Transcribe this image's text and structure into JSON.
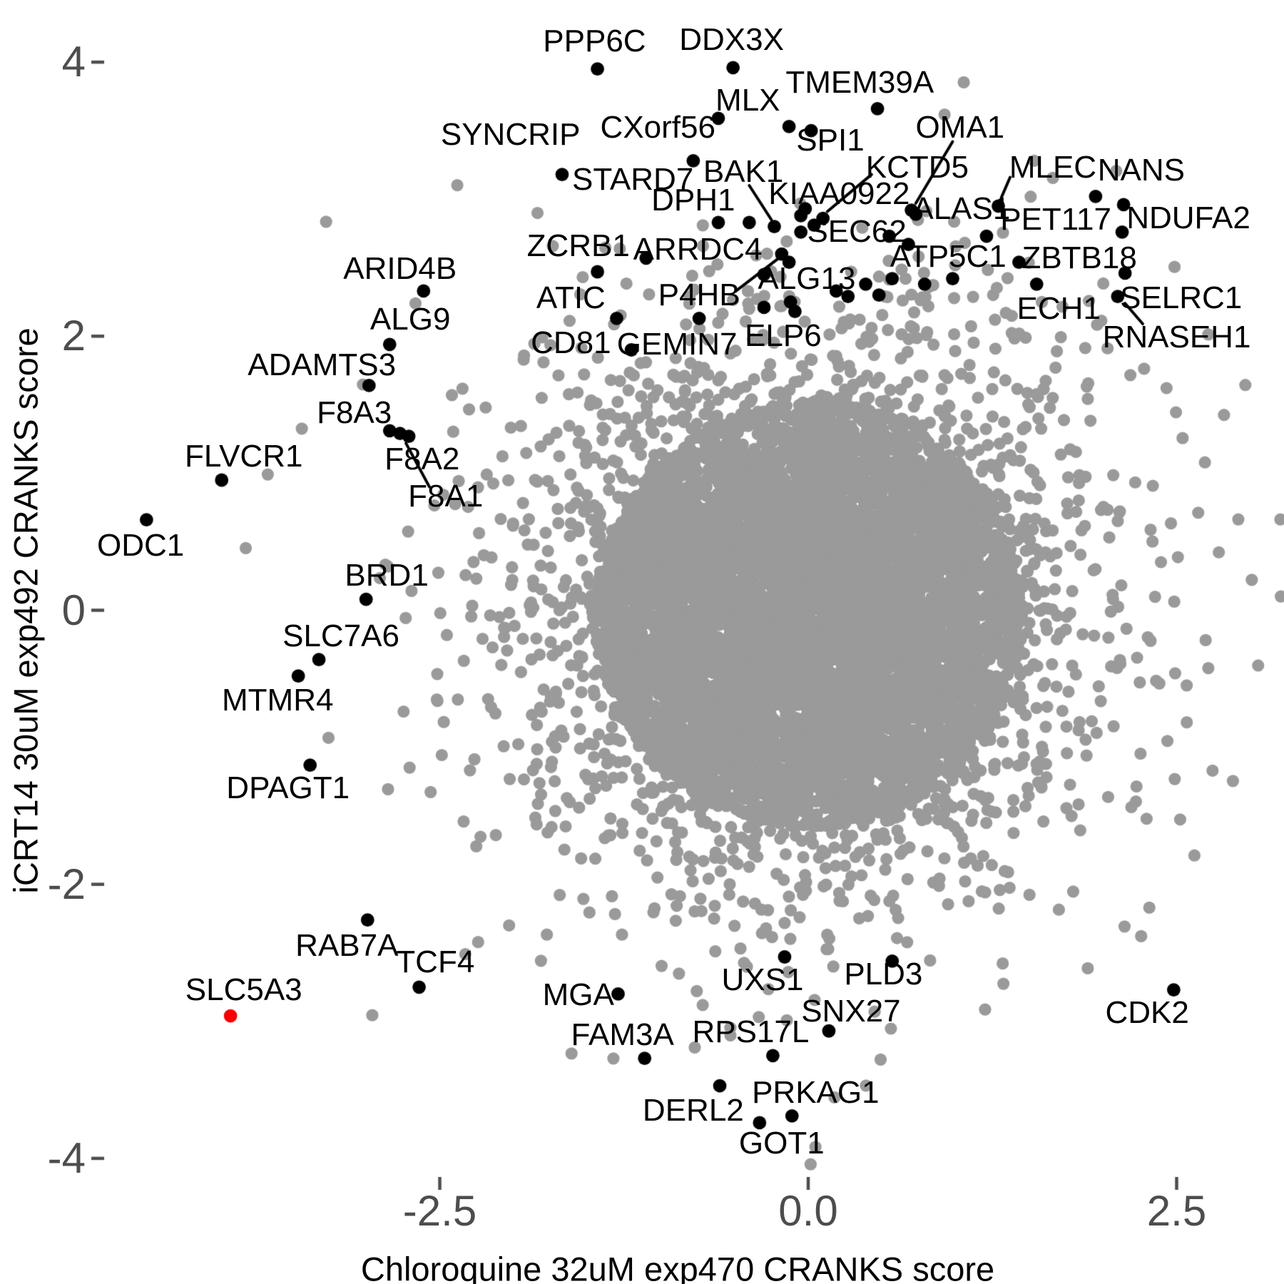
{
  "chart_data": {
    "type": "scatter",
    "title": "",
    "xlabel": "Chloroquine 32uM exp470 CRANKS score",
    "ylabel": "iCRT14 30uM exp492 CRANKS score",
    "xlim": [
      -4.85,
      3.2
    ],
    "ylim": [
      -4.6,
      4.4
    ],
    "grid": false,
    "legend": "none",
    "x_ticks": [
      {
        "value": -2.5,
        "label": "-2.5"
      },
      {
        "value": 0.0,
        "label": "0.0"
      },
      {
        "value": 2.5,
        "label": "2.5"
      }
    ],
    "y_ticks": [
      {
        "value": 4,
        "label": "4"
      },
      {
        "value": 2,
        "label": "2"
      },
      {
        "value": 0,
        "label": "0"
      },
      {
        "value": -2,
        "label": "-2"
      },
      {
        "value": -4,
        "label": "-4"
      }
    ],
    "colors": {
      "cloud": "#9a9a9a",
      "highlight": "#000000",
      "special": "#f80000",
      "tick_text": "#4d4d4d",
      "axis_title": "#000000"
    },
    "background_cloud": {
      "description": "dense cloud of unlabeled genes",
      "seed": 1234,
      "center": [
        0.01,
        -0.03
      ],
      "groups": [
        {
          "n": 4800,
          "type": "disk",
          "rx": 1.45,
          "ry": 1.55
        },
        {
          "n": 3400,
          "type": "gauss",
          "sx": 0.92,
          "sy": 1.0
        },
        {
          "n": 300,
          "type": "gauss",
          "sx": 1.5,
          "sy": 1.55
        }
      ],
      "dot_radius_px": 8.6
    },
    "labeled_points": [
      {
        "gene": "PPP6C",
        "x": -1.43,
        "y": 3.95,
        "lx": -1.45,
        "ly": 4.15
      },
      {
        "gene": "DDX3X",
        "x": -0.51,
        "y": 3.96,
        "lx": -0.52,
        "ly": 4.16
      },
      {
        "gene": "MLX",
        "x": -0.13,
        "y": 3.53,
        "lx": -0.41,
        "ly": 3.72
      },
      {
        "gene": "CXorf56",
        "x": -0.61,
        "y": 3.59,
        "lx": -1.02,
        "ly": 3.52
      },
      {
        "gene": "TMEM39A",
        "x": 0.47,
        "y": 3.66,
        "lx": 0.35,
        "ly": 3.85
      },
      {
        "gene": "SPI1",
        "x": 0.02,
        "y": 3.5,
        "lx": 0.15,
        "ly": 3.43
      },
      {
        "gene": "SYNCRIP",
        "x": -1.67,
        "y": 3.18,
        "lx": -2.02,
        "ly": 3.47
      },
      {
        "gene": "STARD7",
        "x": -0.78,
        "y": 3.28,
        "lx": -1.19,
        "ly": 3.14
      },
      {
        "gene": "BAK1",
        "x": -0.23,
        "y": 2.8,
        "lx": -0.44,
        "ly": 3.2,
        "line": [
          -0.4,
          3.1,
          -0.25,
          2.85
        ]
      },
      {
        "gene": "DPH1",
        "x": -0.61,
        "y": 2.83,
        "lx": -0.78,
        "ly": 2.99
      },
      {
        "gene": "KIAA0922",
        "x": 0.04,
        "y": 2.81,
        "lx": 0.21,
        "ly": 3.04
      },
      {
        "gene": "KCTD5",
        "x": 0.1,
        "y": 2.86,
        "lx": 0.74,
        "ly": 3.23,
        "line": [
          0.43,
          3.18,
          0.13,
          2.91
        ]
      },
      {
        "gene": "OMA1",
        "x": 0.7,
        "y": 2.92,
        "lx": 1.03,
        "ly": 3.52,
        "line": [
          0.98,
          3.42,
          0.73,
          2.97
        ]
      },
      {
        "gene": "ALAS1",
        "x": 0.73,
        "y": 2.89,
        "lx": 1.04,
        "ly": 2.93
      },
      {
        "gene": "SEC62",
        "x": 0.55,
        "y": 2.73,
        "lx": 0.33,
        "ly": 2.76
      },
      {
        "gene": "ATP5C1",
        "x": 0.68,
        "y": 2.67,
        "lx": 0.95,
        "ly": 2.58
      },
      {
        "gene": "MLEC",
        "x": 1.29,
        "y": 2.95,
        "lx": 1.66,
        "ly": 3.23,
        "line": [
          1.37,
          3.16,
          1.31,
          3.01
        ]
      },
      {
        "gene": "NANS",
        "x": 2.14,
        "y": 2.96,
        "lx": 2.26,
        "ly": 3.21
      },
      {
        "gene": "PET117",
        "x": 1.95,
        "y": 3.02,
        "lx": 1.68,
        "ly": 2.85
      },
      {
        "gene": "NDUFA2",
        "x": 2.13,
        "y": 2.76,
        "lx": 2.58,
        "ly": 2.86
      },
      {
        "gene": "ZBTB18",
        "x": 1.43,
        "y": 2.54,
        "lx": 1.84,
        "ly": 2.57
      },
      {
        "gene": "ECH1",
        "x": 1.55,
        "y": 2.38,
        "lx": 1.7,
        "ly": 2.2
      },
      {
        "gene": "SELRC1",
        "x": 2.1,
        "y": 2.29,
        "lx": 2.53,
        "ly": 2.28
      },
      {
        "gene": "RNASEH1",
        "x": 2.15,
        "y": 2.46,
        "lx": 2.5,
        "ly": 1.99,
        "line": [
          2.27,
          2.09,
          2.15,
          2.24
        ]
      },
      {
        "gene": "ZCRB1",
        "x": -1.43,
        "y": 2.47,
        "lx": -1.56,
        "ly": 2.66
      },
      {
        "gene": "ARRDC4",
        "x": -1.1,
        "y": 2.57,
        "lx": -0.75,
        "ly": 2.63
      },
      {
        "gene": "P4HB",
        "x": -0.18,
        "y": 2.6,
        "lx": -0.74,
        "ly": 2.3,
        "line": [
          -0.49,
          2.33,
          -0.2,
          2.57
        ]
      },
      {
        "gene": "ATIC",
        "x": -1.3,
        "y": 2.13,
        "lx": -1.61,
        "ly": 2.28
      },
      {
        "gene": "CD81",
        "x": -1.2,
        "y": 1.9,
        "lx": -1.61,
        "ly": 1.95
      },
      {
        "gene": "GEMIN7",
        "x": -0.74,
        "y": 2.13,
        "lx": -0.89,
        "ly": 1.94
      },
      {
        "gene": "ELP6",
        "x": -0.3,
        "y": 2.21,
        "lx": -0.17,
        "ly": 2.0
      },
      {
        "gene": "ALG13",
        "x": 0.39,
        "y": 2.38,
        "lx": -0.01,
        "ly": 2.42
      },
      {
        "gene": "ARID4B",
        "x": -2.61,
        "y": 2.33,
        "lx": -2.77,
        "ly": 2.49
      },
      {
        "gene": "ALG9",
        "x": -2.84,
        "y": 1.94,
        "lx": -2.7,
        "ly": 2.12
      },
      {
        "gene": "ADAMTS3",
        "x": -2.98,
        "y": 1.64,
        "lx": -3.3,
        "ly": 1.79
      },
      {
        "gene": "F8A3",
        "x": -2.84,
        "y": 1.31,
        "lx": -3.08,
        "ly": 1.44
      },
      {
        "gene": "F8A2",
        "x": -2.77,
        "y": 1.29,
        "lx": -2.62,
        "ly": 1.1
      },
      {
        "gene": "F8A1",
        "x": -2.71,
        "y": 1.27,
        "lx": -2.46,
        "ly": 0.83,
        "line": [
          -2.57,
          0.9,
          -2.73,
          1.22
        ]
      },
      {
        "gene": "FLVCR1",
        "x": -3.98,
        "y": 0.95,
        "lx": -3.83,
        "ly": 1.12
      },
      {
        "gene": "ODC1",
        "x": -4.49,
        "y": 0.66,
        "lx": -4.53,
        "ly": 0.47
      },
      {
        "gene": "BRD1",
        "x": -3.0,
        "y": 0.08,
        "lx": -2.86,
        "ly": 0.25
      },
      {
        "gene": "SLC7A6",
        "x": -3.32,
        "y": -0.36,
        "lx": -3.17,
        "ly": -0.19
      },
      {
        "gene": "MTMR4",
        "x": -3.46,
        "y": -0.48,
        "lx": -3.6,
        "ly": -0.66
      },
      {
        "gene": "DPAGT1",
        "x": -3.38,
        "y": -1.13,
        "lx": -3.53,
        "ly": -1.3
      },
      {
        "gene": "RAB7A",
        "x": -2.99,
        "y": -2.26,
        "lx": -3.13,
        "ly": -2.45
      },
      {
        "gene": "TCF4",
        "x": -2.64,
        "y": -2.75,
        "lx": -2.53,
        "ly": -2.57
      },
      {
        "gene": "SLC5A3",
        "x": -3.92,
        "y": -2.96,
        "lx": -3.83,
        "ly": -2.77,
        "color": "special"
      },
      {
        "gene": "MGA",
        "x": -1.29,
        "y": -2.8,
        "lx": -1.56,
        "ly": -2.81
      },
      {
        "gene": "FAM3A",
        "x": -1.11,
        "y": -3.27,
        "lx": -1.26,
        "ly": -3.1
      },
      {
        "gene": "UXS1",
        "x": -0.16,
        "y": -2.53,
        "lx": -0.31,
        "ly": -2.7
      },
      {
        "gene": "RPS17L",
        "x": -0.24,
        "y": -3.25,
        "lx": -0.39,
        "ly": -3.08
      },
      {
        "gene": "SNX27",
        "x": 0.14,
        "y": -3.07,
        "lx": 0.29,
        "ly": -2.93
      },
      {
        "gene": "PLD3",
        "x": 0.57,
        "y": -2.56,
        "lx": 0.51,
        "ly": -2.66
      },
      {
        "gene": "DERL2",
        "x": -0.6,
        "y": -3.47,
        "lx": -0.78,
        "ly": -3.65
      },
      {
        "gene": "PRKAG1",
        "x": -0.11,
        "y": -3.69,
        "lx": 0.05,
        "ly": -3.52
      },
      {
        "gene": "GOT1",
        "x": -0.33,
        "y": -3.74,
        "lx": -0.18,
        "ly": -3.89
      },
      {
        "gene": "CDK2",
        "x": 2.48,
        "y": -2.77,
        "lx": 2.3,
        "ly": -2.94
      }
    ],
    "extra_black_points": [
      [
        -0.05,
        2.88
      ],
      [
        -0.05,
        2.76
      ],
      [
        -0.4,
        2.83
      ],
      [
        -0.13,
        2.54
      ],
      [
        -0.12,
        2.25
      ],
      [
        -0.09,
        2.18
      ],
      [
        0.19,
        2.33
      ],
      [
        0.27,
        2.29
      ],
      [
        0.57,
        2.42
      ],
      [
        0.79,
        2.38
      ],
      [
        0.98,
        2.42
      ],
      [
        1.21,
        2.73
      ],
      [
        0.48,
        2.3
      ],
      [
        -0.3,
        2.45
      ],
      [
        -0.02,
        2.93
      ]
    ]
  }
}
